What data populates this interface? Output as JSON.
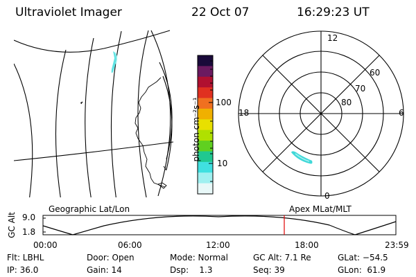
{
  "header": {
    "instrument": "Ultraviolet Imager",
    "date": "22 Oct 07",
    "time": "16:29:23 UT"
  },
  "colorbar": {
    "unit_label": "photon cm⁻²s⁻¹",
    "ticks": [
      "100",
      "10"
    ],
    "colors": [
      "#1a0a3a",
      "#6b1a60",
      "#b01030",
      "#e03020",
      "#f07020",
      "#f0b000",
      "#e8e000",
      "#b0e000",
      "#60d020",
      "#20c890",
      "#40e0e0",
      "#a0f0f0",
      "#e8f8f8"
    ]
  },
  "polar_plot": {
    "mlt_labels": {
      "top": "12",
      "bottom": "0",
      "left": "18",
      "right": "6"
    },
    "lat_labels": [
      "60",
      "70",
      "80"
    ]
  },
  "timeline": {
    "y_axis_label": "GC Alt",
    "y_ticks": [
      "9.0",
      "1.8"
    ],
    "left_caption": "Geographic Lat/Lon",
    "right_caption": "Apex MLat/MLT",
    "x_ticks": [
      "00:00",
      "06:00",
      "12:00",
      "18:00",
      "23:59"
    ],
    "marker_color": "#e00000"
  },
  "info": {
    "flt": "Flt: LBHL",
    "ip": "IP: 36.0",
    "door": "Door: Open",
    "gain": "Gain: 14",
    "mode": "Mode: Normal",
    "dsp": "Dsp:    1.3",
    "gc_alt": "GC Alt: 7.1 Re",
    "seq": "Seq: 39",
    "glat": "GLat: −54.5",
    "glon": "GLon:  61.9"
  }
}
